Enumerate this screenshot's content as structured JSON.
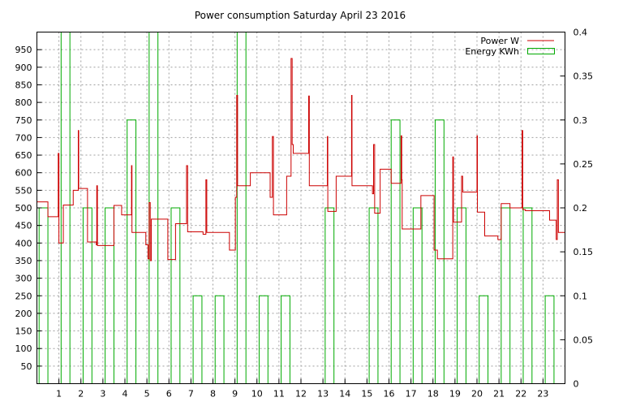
{
  "chart_data": {
    "title": "Power consumption Saturday April 23 2016",
    "type": "line",
    "grid": true,
    "legend_position": "top-right",
    "x_ticks": [
      "1",
      "2",
      "3",
      "4",
      "5",
      "6",
      "7",
      "8",
      "9",
      "10",
      "11",
      "12",
      "13",
      "14",
      "15",
      "16",
      "17",
      "18",
      "19",
      "20",
      "21",
      "22",
      "23"
    ],
    "xlim": [
      0,
      24
    ],
    "ylim": [
      0,
      1000
    ],
    "y_ticks": [
      "50",
      "100",
      "150",
      "200",
      "250",
      "300",
      "350",
      "400",
      "450",
      "500",
      "550",
      "600",
      "650",
      "700",
      "750",
      "800",
      "850",
      "900",
      "950"
    ],
    "y2lim": [
      0,
      0.4
    ],
    "y2_ticks": [
      "0",
      "0.05",
      "0.1",
      "0.15",
      "0.2",
      "0.25",
      "0.3",
      "0.35",
      "0.4"
    ],
    "series": [
      {
        "name": "Power W",
        "color": "#cc0000",
        "axis": "left",
        "style": "steps",
        "points": [
          [
            0,
            517
          ],
          [
            0.5,
            475
          ],
          [
            0.95,
            475
          ],
          [
            0.97,
            655
          ],
          [
            1.0,
            400
          ],
          [
            1.15,
            400
          ],
          [
            1.2,
            508
          ],
          [
            1.6,
            508
          ],
          [
            1.65,
            550
          ],
          [
            1.85,
            550
          ],
          [
            1.88,
            720
          ],
          [
            1.9,
            555
          ],
          [
            2.25,
            555
          ],
          [
            2.3,
            403
          ],
          [
            2.65,
            403
          ],
          [
            2.7,
            395
          ],
          [
            2.72,
            563
          ],
          [
            2.75,
            393
          ],
          [
            3.4,
            393
          ],
          [
            3.5,
            507
          ],
          [
            3.8,
            507
          ],
          [
            3.85,
            480
          ],
          [
            4.25,
            480
          ],
          [
            4.3,
            620
          ],
          [
            4.32,
            430
          ],
          [
            4.9,
            430
          ],
          [
            4.95,
            395
          ],
          [
            5.05,
            355
          ],
          [
            5.1,
            515
          ],
          [
            5.15,
            350
          ],
          [
            5.2,
            468
          ],
          [
            5.9,
            468
          ],
          [
            5.95,
            353
          ],
          [
            6.25,
            353
          ],
          [
            6.3,
            455
          ],
          [
            6.75,
            455
          ],
          [
            6.8,
            620
          ],
          [
            6.85,
            432
          ],
          [
            7.5,
            432
          ],
          [
            7.55,
            425
          ],
          [
            7.65,
            425
          ],
          [
            7.68,
            580
          ],
          [
            7.72,
            430
          ],
          [
            8.7,
            430
          ],
          [
            8.75,
            380
          ],
          [
            9.0,
            380
          ],
          [
            9.02,
            530
          ],
          [
            9.08,
            820
          ],
          [
            9.12,
            563
          ],
          [
            9.65,
            563
          ],
          [
            9.7,
            600
          ],
          [
            10.55,
            600
          ],
          [
            10.6,
            530
          ],
          [
            10.7,
            703
          ],
          [
            10.75,
            480
          ],
          [
            11.3,
            480
          ],
          [
            11.35,
            590
          ],
          [
            11.5,
            590
          ],
          [
            11.55,
            925
          ],
          [
            11.6,
            680
          ],
          [
            11.65,
            655
          ],
          [
            12.3,
            655
          ],
          [
            12.35,
            818
          ],
          [
            12.38,
            563
          ],
          [
            13.15,
            563
          ],
          [
            13.2,
            703
          ],
          [
            13.22,
            490
          ],
          [
            13.55,
            490
          ],
          [
            13.6,
            590
          ],
          [
            14.25,
            590
          ],
          [
            14.3,
            820
          ],
          [
            14.32,
            563
          ],
          [
            15.2,
            563
          ],
          [
            15.25,
            540
          ],
          [
            15.3,
            680
          ],
          [
            15.35,
            485
          ],
          [
            15.55,
            485
          ],
          [
            15.6,
            610
          ],
          [
            16.05,
            610
          ],
          [
            16.1,
            570
          ],
          [
            16.5,
            570
          ],
          [
            16.55,
            705
          ],
          [
            16.58,
            580
          ],
          [
            16.6,
            440
          ],
          [
            17.4,
            440
          ],
          [
            17.45,
            535
          ],
          [
            18.0,
            535
          ],
          [
            18.05,
            380
          ],
          [
            18.2,
            355
          ],
          [
            18.85,
            355
          ],
          [
            18.9,
            645
          ],
          [
            18.93,
            460
          ],
          [
            19.25,
            460
          ],
          [
            19.3,
            590
          ],
          [
            19.35,
            545
          ],
          [
            19.95,
            545
          ],
          [
            20.0,
            705
          ],
          [
            20.02,
            488
          ],
          [
            20.3,
            488
          ],
          [
            20.35,
            420
          ],
          [
            20.9,
            420
          ],
          [
            20.95,
            410
          ],
          [
            21.05,
            410
          ],
          [
            21.1,
            512
          ],
          [
            21.45,
            512
          ],
          [
            21.5,
            500
          ],
          [
            22.0,
            500
          ],
          [
            22.05,
            720
          ],
          [
            22.08,
            495
          ],
          [
            22.15,
            495
          ],
          [
            22.2,
            492
          ],
          [
            23.25,
            492
          ],
          [
            23.3,
            465
          ],
          [
            23.55,
            465
          ],
          [
            23.6,
            410
          ],
          [
            23.65,
            580
          ],
          [
            23.7,
            430
          ],
          [
            24.0,
            430
          ]
        ]
      },
      {
        "name": "Energy KWh",
        "color": "#00aa00",
        "axis": "right",
        "style": "boxes",
        "x": [
          0,
          1,
          2,
          3,
          4,
          5,
          6,
          7,
          8,
          9,
          10,
          11,
          12,
          13,
          14,
          15,
          16,
          17,
          18,
          19,
          20,
          21,
          22,
          23
        ],
        "values": [
          0.2,
          0.4,
          0.2,
          0.2,
          0.3,
          0.4,
          0.2,
          0.1,
          0.1,
          0.4,
          0.1,
          0.1,
          0,
          0.2,
          0,
          0.2,
          0.3,
          0.2,
          0.3,
          0.2,
          0.1,
          0.2,
          0.2,
          0.1
        ]
      }
    ]
  }
}
